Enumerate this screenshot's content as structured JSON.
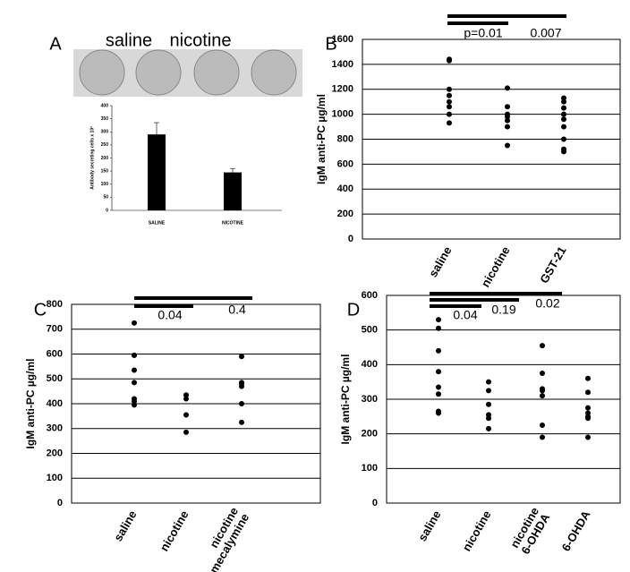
{
  "chart_data": [
    {
      "type": "bar",
      "panel": "A",
      "image_labels": [
        "saline",
        "nicotine"
      ],
      "ylabel": "Antibody secreting cells x 10³",
      "categories": [
        "SALINE",
        "NICOTINE"
      ],
      "values": [
        290,
        145
      ],
      "errors": [
        45,
        15
      ],
      "color": "#000000",
      "ylim": [
        0,
        400
      ],
      "yticks": [
        0,
        50,
        100,
        150,
        200,
        250,
        300,
        350,
        400
      ]
    },
    {
      "type": "strip",
      "panel": "B",
      "ylabel": "IgM  anti-PC µg/ml",
      "annotations": [
        "p=0.01",
        "0.007"
      ],
      "categories": [
        "saline",
        "nicotine",
        "GST-21"
      ],
      "values": [
        [
          1440,
          1430,
          1200,
          1150,
          1100,
          1060,
          1000,
          930
        ],
        [
          1210,
          1060,
          1000,
          980,
          950,
          900,
          750
        ],
        [
          1130,
          1100,
          1050,
          1000,
          960,
          900,
          800,
          720,
          700
        ]
      ],
      "color": "#000000",
      "ylim": [
        0,
        1600
      ],
      "yticks": [
        0,
        200,
        400,
        600,
        800,
        1000,
        1200,
        1400,
        1600
      ],
      "grid": true
    },
    {
      "type": "strip",
      "panel": "C",
      "ylabel": "IgM anti-PC µg/ml",
      "annotations": [
        "0.04",
        "0.4"
      ],
      "categories": [
        "saline",
        "nicotine",
        "nicotine mecalymine"
      ],
      "values": [
        [
          725,
          595,
          595,
          535,
          485,
          420,
          410,
          395
        ],
        [
          435,
          420,
          355,
          285
        ],
        [
          590,
          485,
          480,
          470,
          400,
          325
        ]
      ],
      "color": "#000000",
      "ylim": [
        0,
        800
      ],
      "yticks": [
        0,
        100,
        200,
        300,
        400,
        500,
        600,
        700,
        800
      ],
      "grid": true
    },
    {
      "type": "strip",
      "panel": "D",
      "ylabel": "IgM anti-PC µg/ml",
      "annotations": [
        "0.04",
        "0.19",
        "0.02"
      ],
      "categories": [
        "saline",
        "nicotine",
        "nicotine 6-OHDA",
        "6-OHDA"
      ],
      "values": [
        [
          530,
          505,
          440,
          380,
          335,
          315,
          265,
          260
        ],
        [
          350,
          325,
          285,
          255,
          245,
          215
        ],
        [
          455,
          375,
          330,
          325,
          310,
          225,
          190
        ],
        [
          360,
          320,
          275,
          260,
          250,
          245,
          190
        ]
      ],
      "color": "#000000",
      "ylim": [
        0,
        600
      ],
      "yticks": [
        0,
        100,
        200,
        300,
        400,
        500,
        600
      ],
      "grid": true
    }
  ]
}
